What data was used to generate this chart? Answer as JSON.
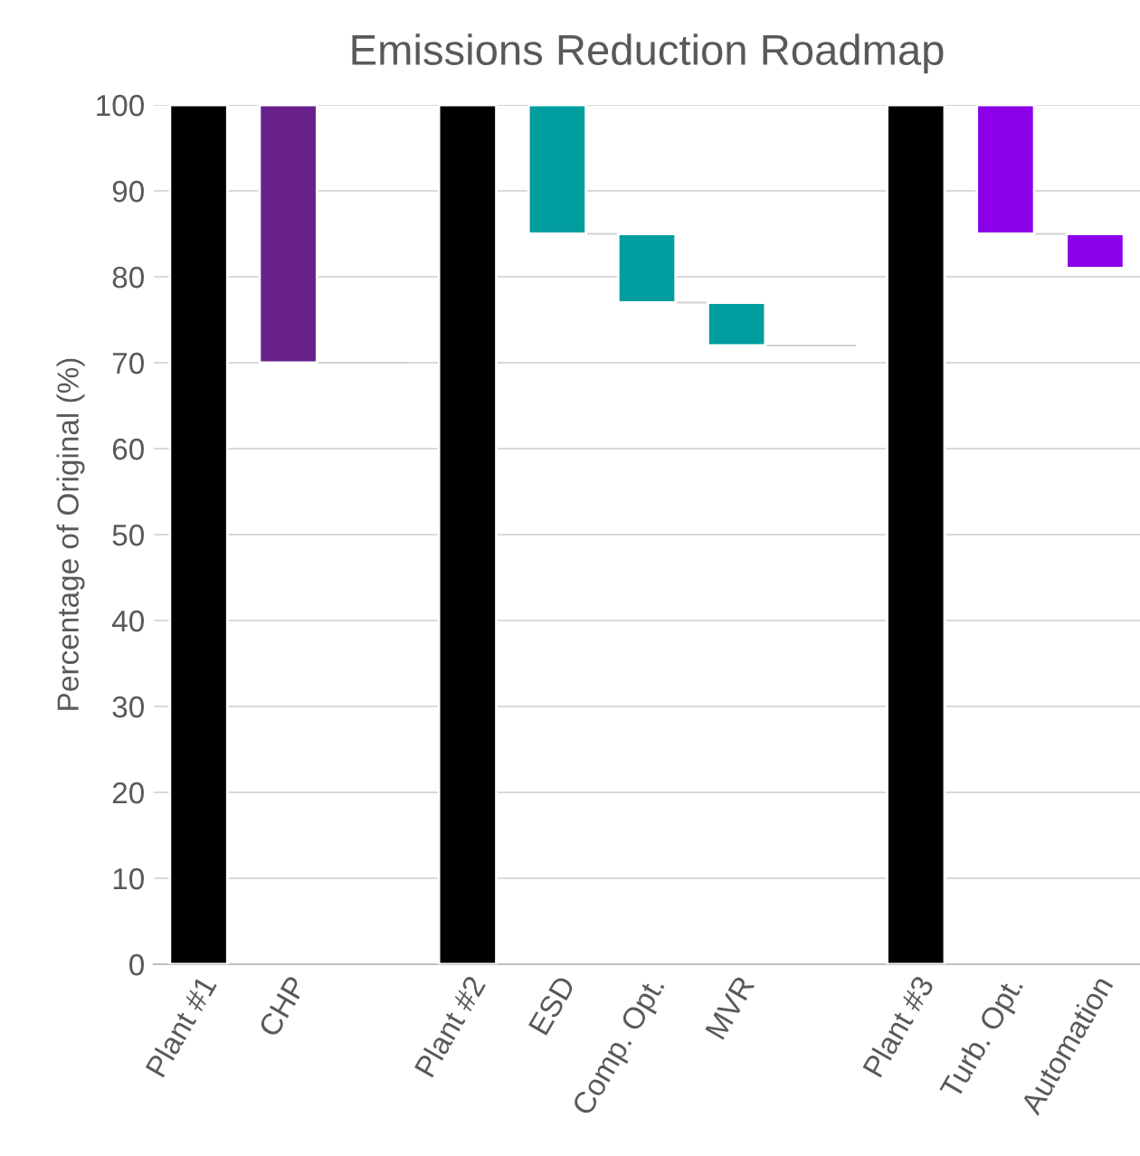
{
  "chart_data": {
    "type": "bar",
    "title": "Emissions Reduction Roadmap",
    "ylabel": "Percentage of Original (%)",
    "categories": [
      "Plant #1",
      "CHP",
      null,
      "Plant #2",
      "ESD",
      "Comp. Opt.",
      "MVR",
      null,
      "Plant #3",
      "Turb. Opt.",
      "Automation"
    ],
    "values": [
      100,
      -30,
      null,
      100,
      -15,
      -8,
      -5,
      null,
      100,
      -15,
      -4
    ],
    "base": [
      0,
      100,
      null,
      0,
      100,
      85,
      77,
      null,
      0,
      100,
      85
    ],
    "colors": [
      "#000000",
      "#68218a",
      null,
      "#000000",
      "#009e9e",
      "#009e9e",
      "#009e9e",
      null,
      "#000000",
      "#8b00e8",
      "#8b00e8"
    ],
    "ylim": [
      0,
      100
    ],
    "yticks": [
      0,
      10,
      20,
      30,
      40,
      50,
      60,
      70,
      80,
      90,
      100
    ],
    "grid": "y"
  }
}
